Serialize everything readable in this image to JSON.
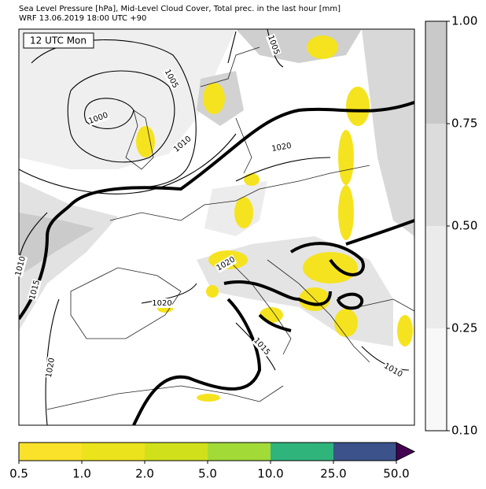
{
  "header": {
    "line1": "Sea Level Pressure [hPa], Mid-Level Cloud Cover, Total prec. in the last hour [mm]",
    "line2": "WRF 13.06.2019 18:00 UTC +90"
  },
  "map": {
    "time_label": "12 UTC Mon",
    "contour_labels": [
      "1005",
      "1000",
      "1010",
      "1005",
      "1020",
      "1015",
      "1010",
      "1020",
      "1020",
      "1015",
      "1010",
      "1020"
    ]
  },
  "cloud_colorbar": {
    "labels": [
      "1.00",
      "0.75",
      "0.50",
      "0.25",
      "0.10"
    ]
  },
  "precip_colorbar": {
    "labels": [
      "0.5",
      "1.0",
      "2.0",
      "5.0",
      "10.0",
      "25.0",
      "50.0"
    ]
  }
}
